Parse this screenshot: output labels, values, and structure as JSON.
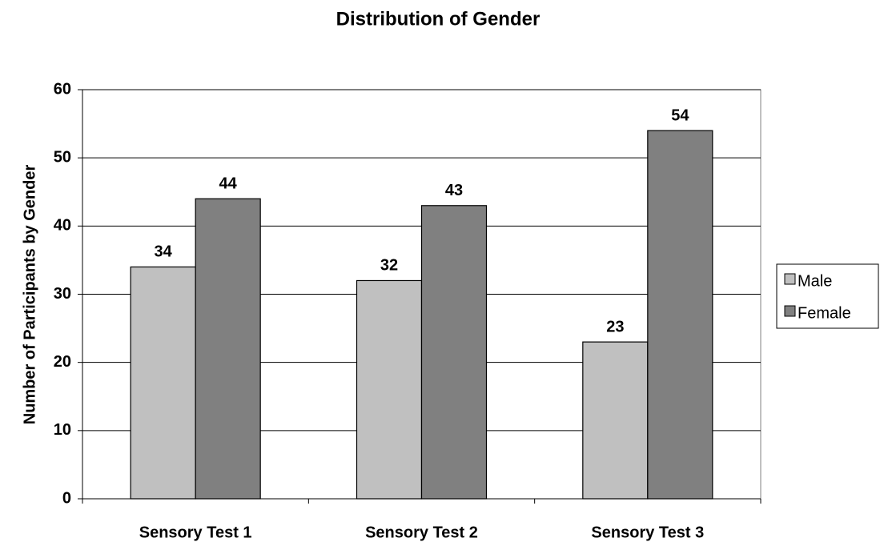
{
  "chart_data": {
    "type": "bar",
    "title": "Distribution of Gender",
    "y_label": "Number of Participants by Gender",
    "categories": [
      "Sensory Test 1",
      "Sensory Test 2",
      "Sensory Test 3"
    ],
    "series": [
      {
        "name": "Male",
        "color": "#c0c0c0",
        "values": [
          34,
          32,
          23
        ]
      },
      {
        "name": "Female",
        "color": "#808080",
        "values": [
          44,
          43,
          54
        ]
      }
    ],
    "ylim": [
      0,
      60
    ],
    "yticks": [
      0,
      10,
      20,
      30,
      40,
      50,
      60
    ],
    "grid": true,
    "legend": "right"
  }
}
